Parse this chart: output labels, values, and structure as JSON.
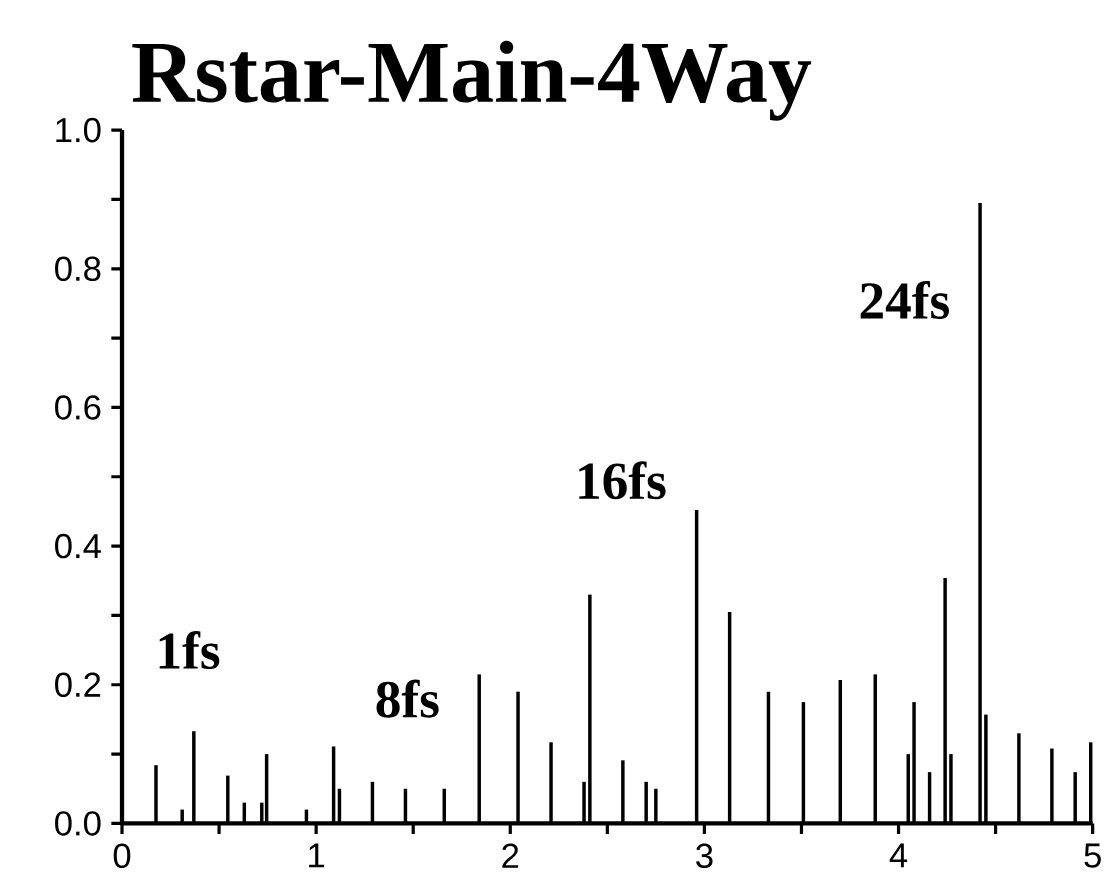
{
  "chart_data": {
    "type": "bar",
    "title": "Rstar-Main-4Way",
    "series": [
      {
        "color": "#000000",
        "x": [
          0.175,
          0.31,
          0.37,
          0.545,
          0.63,
          0.72,
          0.745,
          0.95,
          1.09,
          1.12,
          1.29,
          1.46,
          1.66,
          1.84,
          2.04,
          2.21,
          2.38,
          2.41,
          2.58,
          2.7,
          2.75,
          2.96,
          3.13,
          3.33,
          3.51,
          3.7,
          3.88,
          4.05,
          4.08,
          4.16,
          4.24,
          4.27,
          4.42,
          4.45,
          4.62,
          4.79,
          4.91,
          4.99
        ],
        "values": [
          0.084,
          0.02,
          0.133,
          0.069,
          0.03,
          0.03,
          0.1,
          0.02,
          0.111,
          0.05,
          0.06,
          0.05,
          0.05,
          0.215,
          0.19,
          0.117,
          0.06,
          0.33,
          0.091,
          0.06,
          0.05,
          0.452,
          0.305,
          0.19,
          0.175,
          0.207,
          0.215,
          0.1,
          0.175,
          0.074,
          0.354,
          0.1,
          0.895,
          0.157,
          0.13,
          0.108,
          0.074,
          0.117
        ]
      }
    ],
    "xlim": [
      0,
      5
    ],
    "ylim": [
      0,
      1.0
    ],
    "xticks": [
      0,
      {
        "value": 0.5,
        "label": null
      },
      1,
      {
        "value": 1.5,
        "label": null
      },
      2,
      {
        "value": 2.5,
        "label": null
      },
      3,
      {
        "value": 3.5,
        "label": null
      },
      4,
      {
        "value": 4.5,
        "label": null
      },
      5
    ],
    "yticks": [
      {
        "value": 0,
        "label": "0.0"
      },
      {
        "value": 0.1,
        "label": null
      },
      0.2,
      {
        "value": 0.3,
        "label": null
      },
      0.4,
      {
        "value": 0.5,
        "label": null
      },
      0.6,
      {
        "value": 0.7,
        "label": null
      },
      0.8,
      {
        "value": 0.9,
        "label": null
      },
      {
        "value": 1.0,
        "label": "1.0"
      }
    ],
    "annotations": [
      "1fs",
      "8fs",
      "16fs",
      "24fs"
    ],
    "grid": false
  }
}
